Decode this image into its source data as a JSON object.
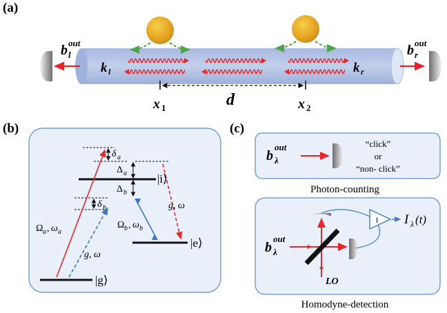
{
  "panels": {
    "a": {
      "label": "(a)",
      "b_l_out": {
        "base": "b",
        "sub": "l",
        "sup": "out"
      },
      "b_r_out": {
        "base": "b",
        "sub": "r",
        "sup": "out"
      },
      "k_l": {
        "base": "k",
        "sub": "l"
      },
      "k_r": {
        "base": "k",
        "sub": "r"
      },
      "x1": {
        "base": "x",
        "sub": "1"
      },
      "x2": {
        "base": "x",
        "sub": "2"
      },
      "d": "d"
    },
    "b": {
      "label": "(b)",
      "delta_a": {
        "base": "δ",
        "sub": "a"
      },
      "delta_b": {
        "base": "δ",
        "sub": "b"
      },
      "Delta_a": {
        "base": "Δ",
        "sub": "a"
      },
      "Delta_b": {
        "base": "Δ",
        "sub": "b"
      },
      "ket_i": "|i⟩",
      "ket_e": "|e⟩",
      "ket_g": "|g⟩",
      "g_omega_1": "g, ω",
      "g_omega_2": "g, ω",
      "Omega_a": "Ω",
      "Omega_a_sub": "a",
      "omega_a": "ω",
      "omega_a_sub": "a",
      "Omega_b": "Ω",
      "Omega_b_sub": "b",
      "omega_b": "ω",
      "omega_b_sub": "b"
    },
    "c": {
      "label": "(c)",
      "b_lambda_out": {
        "base": "b",
        "sub": "λ",
        "sup": "out"
      },
      "click": "“click”",
      "or": "or",
      "non_click": "“non- click”",
      "photon_counting": "Photon-counting",
      "b_lambda_out_2": {
        "base": "b",
        "sub": "λ",
        "sup": "out"
      },
      "amp_symbol": "I",
      "I_lambda": {
        "base": "I",
        "sub": "λ",
        "arg": " (t)"
      },
      "lo": "LO",
      "homodyne": "Homodyne-detection"
    }
  },
  "colors": {
    "waveguide_fill": "#b7c6e6",
    "red": "#e8262a",
    "blue": "#3b78c4",
    "green_dashed": "#4fa34a",
    "atom_gold": "#e7a91f",
    "panel_bg": "#e9f0fa",
    "panel_border": "#5b8fc9"
  }
}
